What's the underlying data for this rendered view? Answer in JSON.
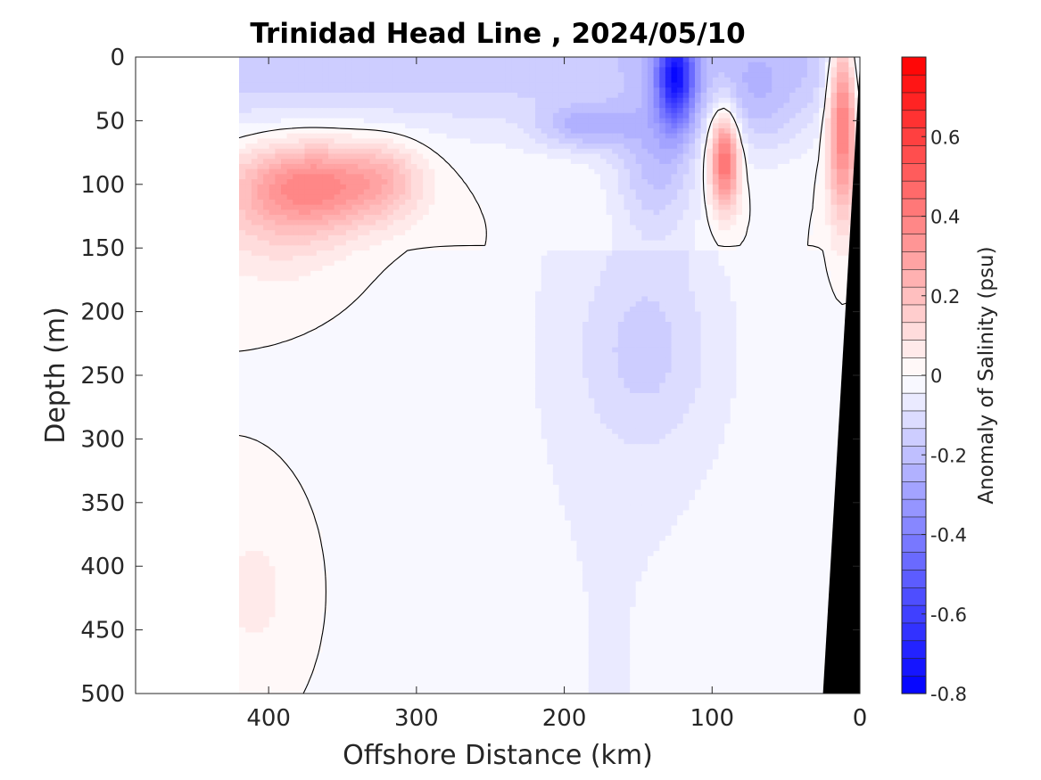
{
  "chart_data": {
    "type": "heatmap",
    "title": "Trinidad Head Line , 2024/05/10",
    "xlabel": "Offshore Distance (km)",
    "ylabel": "Depth (m)",
    "colorbar_label": "Anomaly of Salinity (psu)",
    "xlim": [
      490,
      0
    ],
    "ylim": [
      500,
      0
    ],
    "x_reversed": true,
    "y_reversed": true,
    "xticks": [
      400,
      300,
      200,
      100,
      0
    ],
    "xtick_labels": [
      "400",
      "300",
      "200",
      "100",
      "0"
    ],
    "yticks": [
      0,
      50,
      100,
      150,
      200,
      250,
      300,
      350,
      400,
      450,
      500
    ],
    "ytick_labels": [
      "0",
      "50",
      "100",
      "150",
      "200",
      "250",
      "300",
      "350",
      "400",
      "450",
      "500"
    ],
    "color_range": [
      -0.8,
      0.8
    ],
    "color_levels": 36,
    "colorbar_ticks": [
      0.6,
      0.4,
      0.2,
      0,
      -0.2,
      -0.4,
      -0.6,
      -0.8
    ],
    "colorbar_tick_labels": [
      "0.6",
      "0.4",
      "0.2",
      "0",
      "-0.2",
      "-0.4",
      "-0.6",
      "-0.8"
    ],
    "colormap": {
      "negative": "#0000ff",
      "zero": "#ffffff",
      "positive": "#ff0000"
    },
    "data_extent_km": [
      420,
      0
    ],
    "contour_levels": [
      0
    ],
    "bathymetry_color": "#000000",
    "bottom_profile": [
      {
        "distance_km": 0,
        "depth_m": 5
      },
      {
        "distance_km": 25,
        "depth_m": 500
      }
    ],
    "features": [
      {
        "name": "subsurface salinity maximum",
        "center_km": 340,
        "center_depth_m": 105,
        "peak_psu": 0.35
      },
      {
        "name": "nearshore salinity maximum",
        "center_km": 92,
        "center_depth_m": 80,
        "peak_psu": 0.35
      },
      {
        "name": "coastal salinity maximum",
        "center_km": 14,
        "center_depth_m": 50,
        "peak_psu": 0.3
      },
      {
        "name": "surface salinity minimum",
        "center_km": 125,
        "center_depth_m": 20,
        "peak_psu": -0.75
      }
    ]
  }
}
